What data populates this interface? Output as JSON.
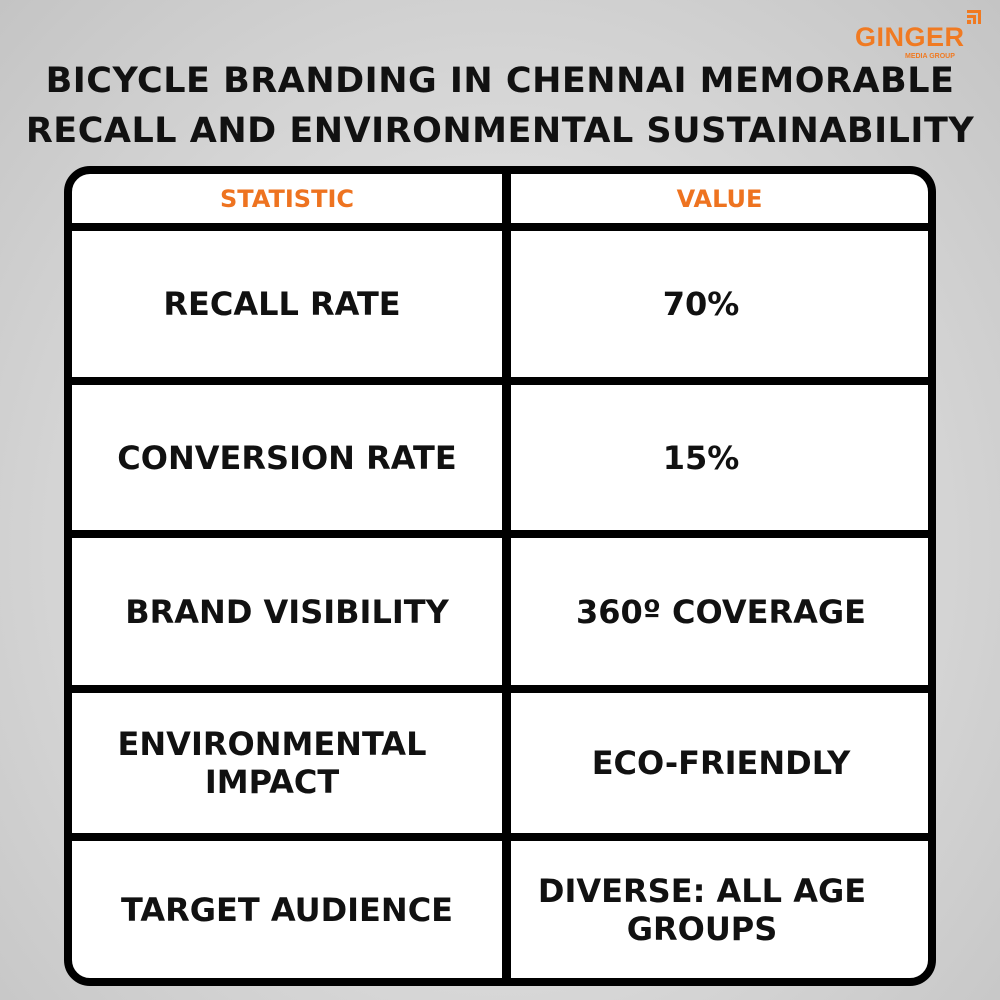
{
  "title": {
    "line1": "BICYCLE BRANDING IN CHENNAI MEMORABLE",
    "line2": "RECALL AND ENVIRONMENTAL SUSTAINABILITY"
  },
  "logo": {
    "name": "GINGER",
    "sub": "MEDIA GROUP",
    "color": "#f07a22"
  },
  "table": {
    "headers": [
      "STATISTIC",
      "VALUE"
    ],
    "header_color": "#ee7320",
    "rows": [
      {
        "statistic": "RECALL RATE",
        "value": "70%"
      },
      {
        "statistic": "CONVERSION RATE",
        "value": "15%"
      },
      {
        "statistic": "BRAND VISIBILITY",
        "value": "360º COVERAGE"
      },
      {
        "statistic": "ENVIRONMENTAL IMPACT",
        "value": "ECO-FRIENDLY"
      },
      {
        "statistic": "TARGET AUDIENCE",
        "value": "DIVERSE: ALL AGE GROUPS"
      }
    ]
  }
}
